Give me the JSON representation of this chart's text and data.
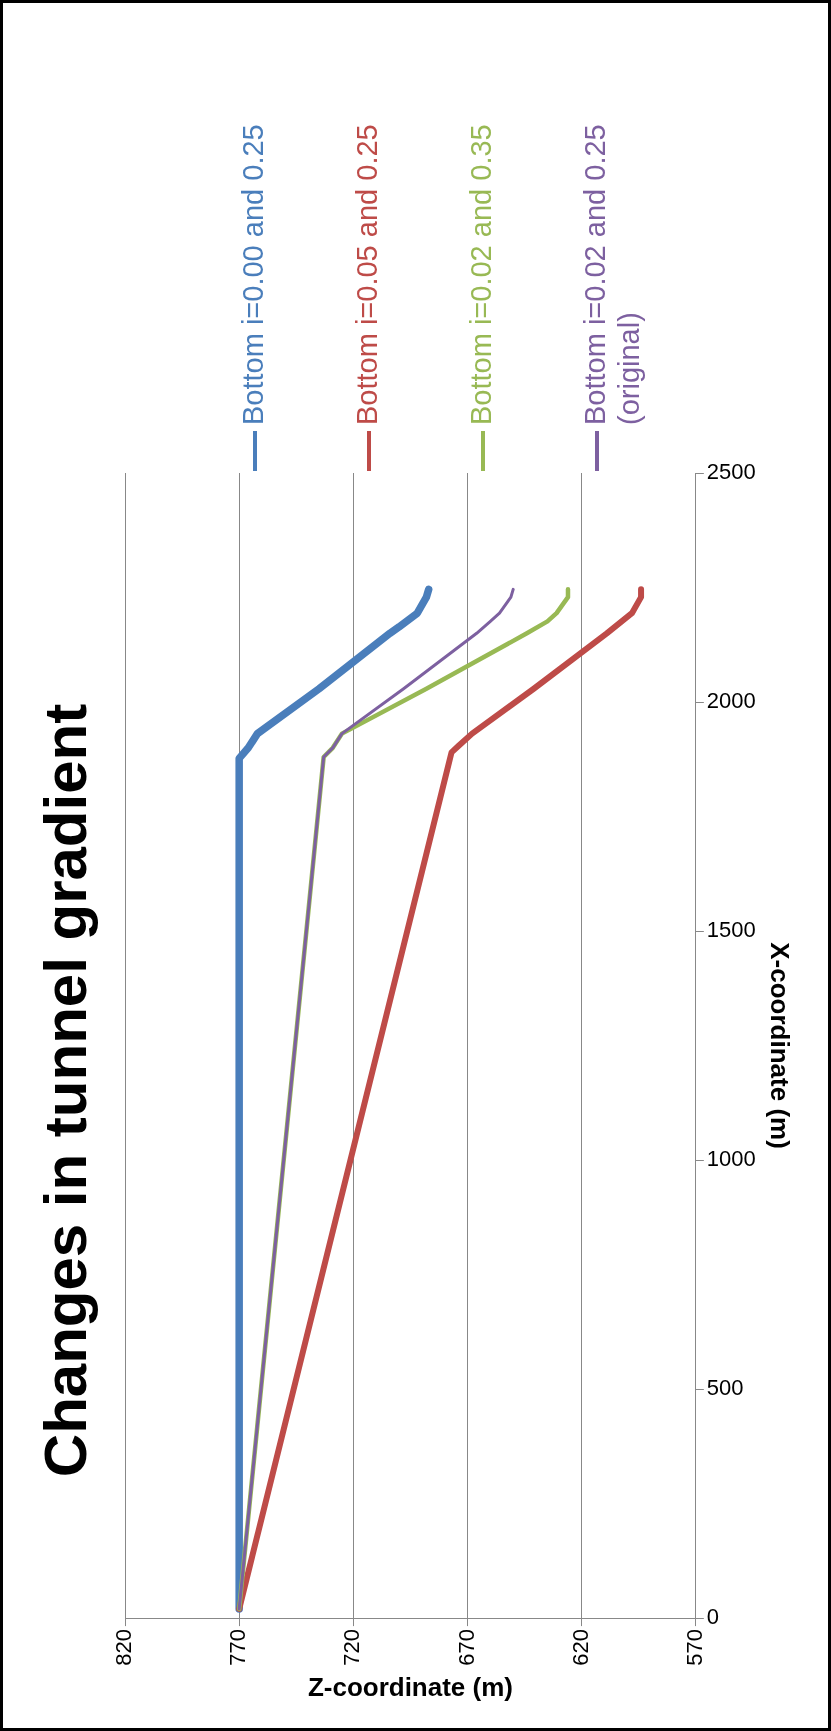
{
  "chart_data": {
    "type": "line",
    "title": "Changes in tunnel gradient",
    "xlabel": "Z-coordinate (m)",
    "ylabel": "X-coordinate (m)",
    "xlim": [
      820,
      570
    ],
    "xticks": [
      820,
      770,
      720,
      670,
      620,
      570
    ],
    "ylim": [
      0,
      2500
    ],
    "yticks": [
      0,
      500,
      1000,
      1500,
      2000,
      2500
    ],
    "grid": "x",
    "legend": "top",
    "marker": "none",
    "line_style": "solid",
    "series": [
      {
        "name": "Bottom i=0.00 and 0.25",
        "color": "#4a7ebb",
        "x": [
          770,
          770,
          766,
          762,
          735,
          704,
          700,
          692,
          688,
          687
        ],
        "values": [
          20,
          1877,
          1900,
          1931,
          2029,
          2150,
          2164,
          2194,
          2229,
          2246
        ]
      },
      {
        "name": "Bottom i=0.05 and 0.25",
        "color": "#be4b48",
        "x": [
          770,
          677,
          674,
          668,
          641,
          609,
          598,
          594,
          594
        ],
        "values": [
          20,
          1890,
          1904,
          1931,
          2029,
          2150,
          2194,
          2229,
          2246
        ]
      },
      {
        "name": "Bottom i=0.02 and 0.35",
        "color": "#98b954",
        "x": [
          770,
          733,
          729,
          725,
          688,
          644,
          635,
          631,
          626,
          626
        ],
        "values": [
          20,
          1880,
          1900,
          1931,
          2029,
          2150,
          2176,
          2194,
          2229,
          2246
        ]
      },
      {
        "name": "Bottom i=0.02 and 0.25 (original)",
        "color": "#7d60a0",
        "x": [
          770,
          733,
          729,
          725,
          698,
          666,
          660,
          656,
          651,
          650
        ],
        "values": [
          20,
          1880,
          1900,
          1931,
          2029,
          2150,
          2176,
          2194,
          2229,
          2246
        ]
      }
    ]
  }
}
